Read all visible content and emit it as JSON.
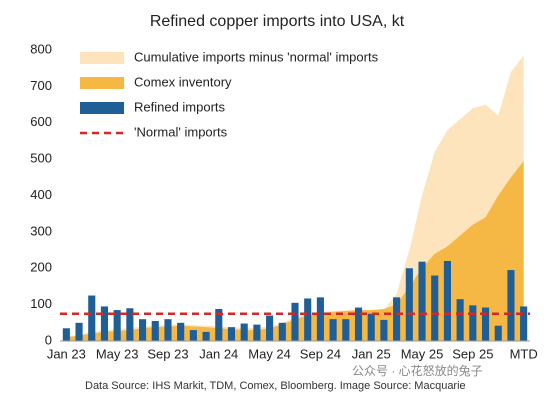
{
  "chart_data": {
    "type": "bar",
    "title": "Refined copper imports into USA, kt",
    "source": "Data Source: IHS Markit, TDM, Comex, Bloomberg. Image Source: Macquarie",
    "watermark": "公众号 · 心花怒放的兔子",
    "categories": [
      "Jan 23",
      null,
      null,
      null,
      "May 23",
      null,
      null,
      null,
      "Sep 23",
      null,
      null,
      null,
      "Jan 24",
      null,
      null,
      null,
      "May 24",
      null,
      null,
      null,
      "Sep 24",
      null,
      null,
      null,
      "Jan 25",
      null,
      null,
      null,
      "May 25",
      null,
      null,
      null,
      "Sep 25",
      null,
      null,
      null,
      "MTD"
    ],
    "series": [
      {
        "name": "Cumulative imports minus 'normal' imports",
        "kind": "area",
        "color": "#fde4bd",
        "values": [
          12,
          18,
          25,
          30,
          33,
          36,
          40,
          42,
          45,
          46,
          44,
          42,
          40,
          38,
          36,
          36,
          40,
          50,
          65,
          75,
          80,
          82,
          84,
          86,
          82,
          86,
          130,
          250,
          400,
          520,
          580,
          610,
          640,
          650,
          620,
          740,
          785
        ]
      },
      {
        "name": "Comex inventory",
        "kind": "area",
        "color": "#f6b845",
        "values": [
          10,
          15,
          20,
          25,
          28,
          30,
          35,
          38,
          40,
          42,
          40,
          38,
          35,
          33,
          30,
          30,
          35,
          45,
          60,
          70,
          75,
          80,
          82,
          85,
          85,
          88,
          100,
          150,
          200,
          240,
          260,
          290,
          320,
          340,
          400,
          450,
          495
        ]
      },
      {
        "name": "Refined imports",
        "kind": "bar",
        "color": "#1f5f97",
        "values": [
          35,
          50,
          125,
          95,
          85,
          90,
          60,
          55,
          60,
          50,
          30,
          25,
          88,
          38,
          48,
          45,
          70,
          50,
          105,
          117,
          120,
          60,
          60,
          92,
          75,
          58,
          120,
          200,
          218,
          180,
          220,
          115,
          98,
          92,
          42,
          195,
          95
        ]
      },
      {
        "name": "'Normal' imports",
        "kind": "line",
        "color": "#d62728",
        "value": 75
      }
    ],
    "ylim": [
      0,
      800
    ],
    "yticks": [
      0,
      100,
      200,
      300,
      400,
      500,
      600,
      700,
      800
    ],
    "legend": "upper left"
  }
}
